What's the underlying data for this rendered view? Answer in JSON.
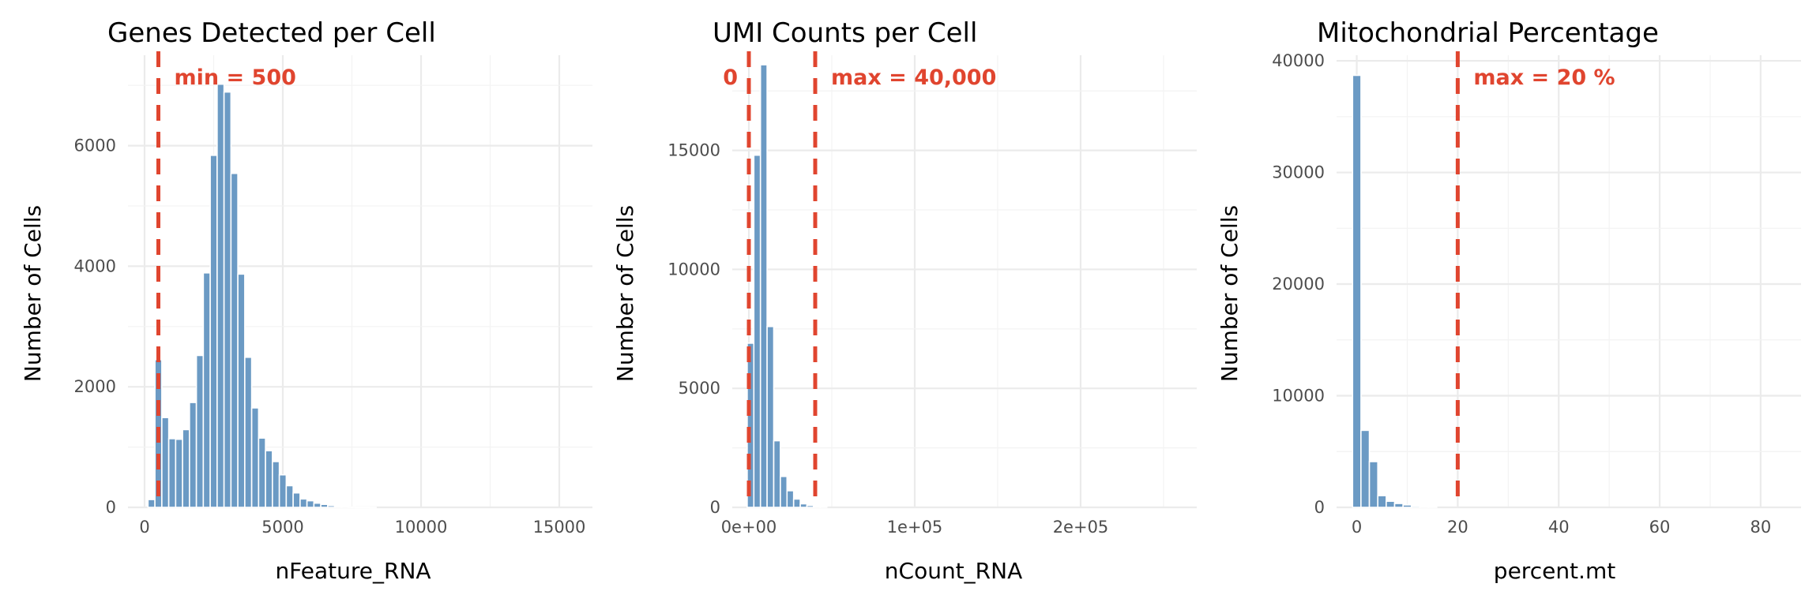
{
  "colors": {
    "bar": "#6b9ac4",
    "threshold": "#e0452f",
    "background": "#ffffff"
  },
  "chart_data": [
    {
      "type": "bar",
      "title": "Genes Detected per Cell",
      "xlabel": "nFeature_RNA",
      "ylabel": "Number of Cells",
      "xlim": [
        -600,
        16200
      ],
      "ylim": [
        0,
        7500
      ],
      "x_ticks": [
        0,
        5000,
        10000,
        15000
      ],
      "x_tick_labels": [
        "0",
        "5000",
        "10000",
        "15000"
      ],
      "y_ticks": [
        0,
        2000,
        4000,
        6000
      ],
      "y_tick_labels": [
        "0",
        "2000",
        "4000",
        "6000"
      ],
      "bin_width": 250,
      "bin_starts": [
        125,
        375,
        625,
        875,
        1125,
        1375,
        1625,
        1875,
        2125,
        2375,
        2625,
        2875,
        3125,
        3375,
        3625,
        3875,
        4125,
        4375,
        4625,
        4875,
        5125,
        5375,
        5625,
        5875,
        6125,
        6375,
        6625,
        6875,
        7125,
        7375,
        7625,
        7875,
        8125
      ],
      "values": [
        130,
        2450,
        1490,
        1140,
        1130,
        1290,
        1740,
        2520,
        3890,
        5840,
        7020,
        6890,
        5540,
        3870,
        2490,
        1650,
        1150,
        940,
        760,
        540,
        360,
        240,
        140,
        110,
        70,
        50,
        30,
        15,
        10,
        5,
        3,
        2,
        1
      ],
      "thresholds": [
        {
          "x": 500,
          "label": "min = 500",
          "label_position": "right"
        }
      ]
    },
    {
      "type": "bar",
      "title": "UMI Counts per Cell",
      "xlabel": "nCount_RNA",
      "ylabel": "Number of Cells",
      "xlim": [
        -10000,
        270000
      ],
      "ylim": [
        0,
        19000
      ],
      "x_ticks": [
        0,
        100000,
        200000
      ],
      "x_tick_labels": [
        "0e+00",
        "1e+05",
        "2e+05"
      ],
      "y_ticks": [
        0,
        5000,
        10000,
        15000
      ],
      "y_tick_labels": [
        "0",
        "5000",
        "10000",
        "15000"
      ],
      "bin_width": 4000,
      "bin_starts": [
        -1000,
        3000,
        7000,
        11000,
        15000,
        19000,
        23000,
        27000,
        31000,
        35000,
        39000,
        43000
      ],
      "values": [
        6900,
        14800,
        18600,
        7600,
        2800,
        1300,
        700,
        350,
        150,
        80,
        40,
        20
      ],
      "thresholds": [
        {
          "x": 0,
          "label": "0",
          "label_position": "left"
        },
        {
          "x": 40000,
          "label": "max = 40,000",
          "label_position": "right"
        }
      ]
    },
    {
      "type": "bar",
      "title": "Mitochondrial Percentage",
      "xlabel": "percent.mt",
      "ylabel": "Number of Cells",
      "xlim": [
        -4,
        88
      ],
      "ylim": [
        0,
        40500
      ],
      "x_ticks": [
        0,
        20,
        40,
        60,
        80
      ],
      "x_tick_labels": [
        "0",
        "20",
        "40",
        "60",
        "80"
      ],
      "y_ticks": [
        0,
        10000,
        20000,
        30000,
        40000
      ],
      "y_tick_labels": [
        "0",
        "10000",
        "20000",
        "30000",
        "40000"
      ],
      "bin_width": 1.67,
      "bin_starts": [
        -0.83,
        0.83,
        2.5,
        4.17,
        5.83,
        7.5,
        9.17,
        10.83,
        12.5,
        14.17
      ],
      "values": [
        38700,
        6900,
        4100,
        1050,
        550,
        350,
        220,
        120,
        60,
        30
      ],
      "thresholds": [
        {
          "x": 20,
          "label": "max = 20 %",
          "label_position": "right"
        }
      ]
    }
  ]
}
